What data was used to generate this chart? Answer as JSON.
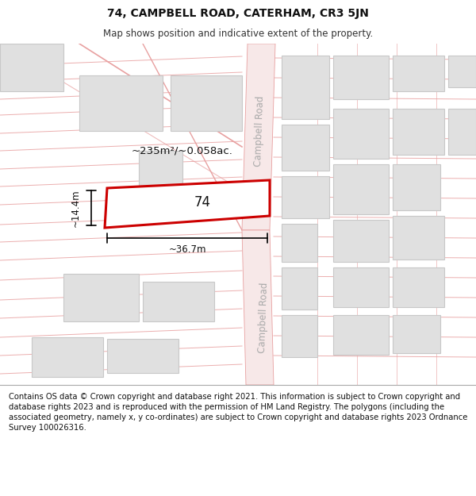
{
  "title": "74, CAMPBELL ROAD, CATERHAM, CR3 5JN",
  "subtitle": "Map shows position and indicative extent of the property.",
  "footer": "Contains OS data © Crown copyright and database right 2021. This information is subject to Crown copyright and database rights 2023 and is reproduced with the permission of HM Land Registry. The polygons (including the associated geometry, namely x, y co-ordinates) are subject to Crown copyright and database rights 2023 Ordnance Survey 100026316.",
  "map_bg": "#f5f5f5",
  "road_fill": "#f7e8e8",
  "road_line": "#e8a0a0",
  "block_fill": "#e0e0e0",
  "block_line": "#c8c8c8",
  "prop_fill": "#ffffff",
  "prop_line": "#cc0000",
  "area_text": "~235m²/~0.058ac.",
  "width_text": "~36.7m",
  "height_text": "~14.4m",
  "number_text": "74",
  "road_label": "Campbell Road",
  "title_fontsize": 10,
  "subtitle_fontsize": 8.5,
  "footer_fontsize": 7.2,
  "annot_fontsize": 9.5,
  "road_label_fontsize": 8.5,
  "prop_num_fontsize": 12
}
